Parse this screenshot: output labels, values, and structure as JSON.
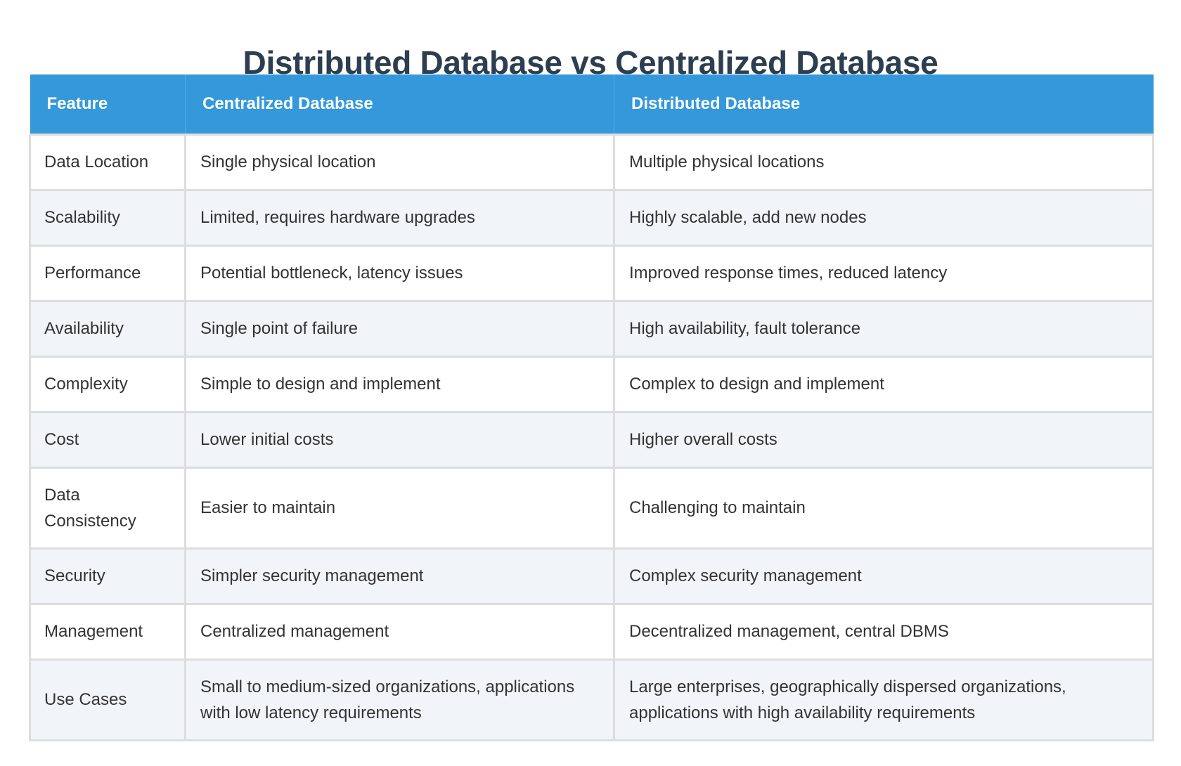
{
  "title": "Distributed Database vs Centralized Database",
  "colors": {
    "title": "#2c3e50",
    "header_bg": "#3498db",
    "header_text": "#ffffff",
    "body_text": "#333333",
    "zebra_bg": "#f1f4f9",
    "border": "#dddddd"
  },
  "table": {
    "headers": [
      "Feature",
      "Centralized Database",
      "Distributed Database"
    ],
    "rows": [
      {
        "feature": "Data Location",
        "centralized": "Single physical location",
        "distributed": "Multiple physical locations"
      },
      {
        "feature": "Scalability",
        "centralized": "Limited, requires hardware upgrades",
        "distributed": "Highly scalable, add new nodes"
      },
      {
        "feature": "Performance",
        "centralized": "Potential bottleneck, latency issues",
        "distributed": "Improved response times, reduced latency"
      },
      {
        "feature": "Availability",
        "centralized": "Single point of failure",
        "distributed": "High availability, fault tolerance"
      },
      {
        "feature": "Complexity",
        "centralized": "Simple to design and implement",
        "distributed": "Complex to design and implement"
      },
      {
        "feature": "Cost",
        "centralized": "Lower initial costs",
        "distributed": "Higher overall costs"
      },
      {
        "feature": "Data Consistency",
        "centralized": "Easier to maintain",
        "distributed": "Challenging to maintain"
      },
      {
        "feature": "Security",
        "centralized": "Simpler security management",
        "distributed": "Complex security management"
      },
      {
        "feature": "Management",
        "centralized": "Centralized management",
        "distributed": "Decentralized management, central DBMS"
      },
      {
        "feature": "Use Cases",
        "centralized": "Small to medium-sized organizations, applications with low latency requirements",
        "distributed": "Large enterprises, geographically dispersed organizations, applications with high availability requirements"
      }
    ]
  }
}
